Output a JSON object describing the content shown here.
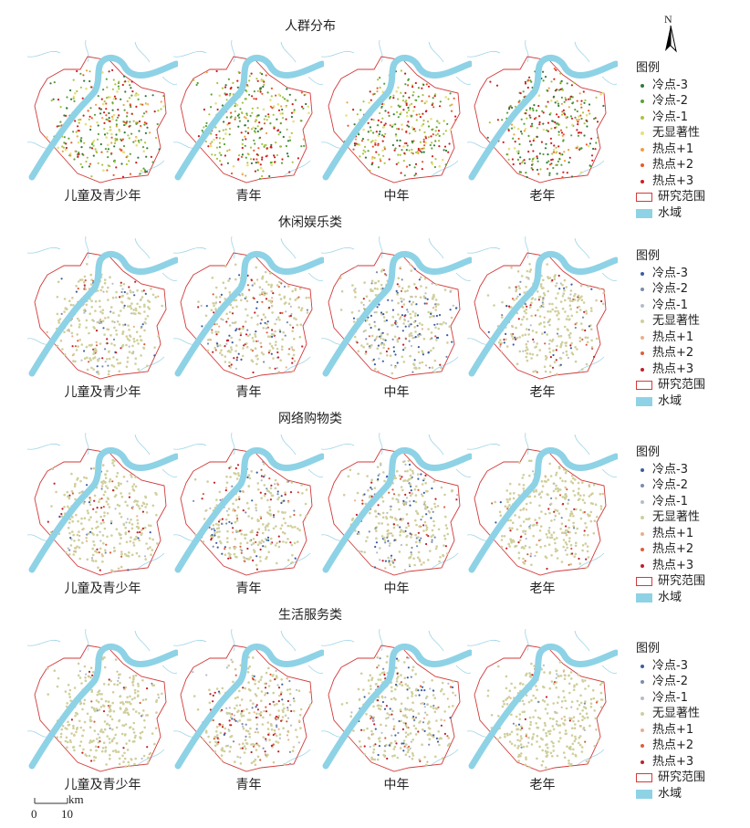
{
  "north_arrow": {
    "label": "N"
  },
  "scale": {
    "start": "0",
    "end": "10",
    "unit": "km"
  },
  "colors": {
    "river": "#8ed2e6",
    "river_edge": "#6fbfd8",
    "boundary": "#d23a3a",
    "population": {
      "cold3": "#2f7b3a",
      "cold2": "#5aa03b",
      "cold1": "#a9c440",
      "ns": "#e6e080",
      "hot1": "#f0a040",
      "hot2": "#e85a2a",
      "hot3": "#cc1f22"
    },
    "activity": {
      "cold3": "#3a5fa0",
      "cold2": "#7a8cb0",
      "cold1": "#b5bcc8",
      "ns": "#cfcf9c",
      "hot1": "#e8b08a",
      "hot2": "#d9603f",
      "hot3": "#c0202a"
    }
  },
  "rows": [
    {
      "title": "人群分布",
      "palette": "population",
      "panels": [
        {
          "label": "儿童及青少年",
          "weights": {
            "cold3": 0.12,
            "cold2": 0.18,
            "cold1": 0.28,
            "ns": 0.12,
            "hot1": 0.05,
            "hot2": 0.08,
            "hot3": 0.17
          }
        },
        {
          "label": "青年",
          "weights": {
            "cold3": 0.12,
            "cold2": 0.18,
            "cold1": 0.3,
            "ns": 0.1,
            "hot1": 0.05,
            "hot2": 0.08,
            "hot3": 0.17
          }
        },
        {
          "label": "中年",
          "weights": {
            "cold3": 0.1,
            "cold2": 0.18,
            "cold1": 0.26,
            "ns": 0.1,
            "hot1": 0.04,
            "hot2": 0.1,
            "hot3": 0.22
          }
        },
        {
          "label": "老年",
          "weights": {
            "cold3": 0.18,
            "cold2": 0.25,
            "cold1": 0.12,
            "ns": 0.08,
            "hot1": 0.03,
            "hot2": 0.08,
            "hot3": 0.26
          }
        }
      ]
    },
    {
      "title": "休闲娱乐类",
      "palette": "activity",
      "panels": [
        {
          "label": "儿童及青少年",
          "weights": {
            "cold3": 0.04,
            "cold2": 0.04,
            "cold1": 0.08,
            "ns": 0.7,
            "hot1": 0.03,
            "hot2": 0.04,
            "hot3": 0.07
          }
        },
        {
          "label": "青年",
          "weights": {
            "cold3": 0.09,
            "cold2": 0.05,
            "cold1": 0.06,
            "ns": 0.62,
            "hot1": 0.03,
            "hot2": 0.05,
            "hot3": 0.1
          }
        },
        {
          "label": "中年",
          "weights": {
            "cold3": 0.2,
            "cold2": 0.08,
            "cold1": 0.06,
            "ns": 0.56,
            "hot1": 0.02,
            "hot2": 0.03,
            "hot3": 0.05
          }
        },
        {
          "label": "老年",
          "weights": {
            "cold3": 0.06,
            "cold2": 0.05,
            "cold1": 0.06,
            "ns": 0.72,
            "hot1": 0.02,
            "hot2": 0.03,
            "hot3": 0.06
          }
        }
      ]
    },
    {
      "title": "网络购物类",
      "palette": "activity",
      "panels": [
        {
          "label": "儿童及青少年",
          "weights": {
            "cold3": 0.04,
            "cold2": 0.03,
            "cold1": 0.06,
            "ns": 0.74,
            "hot1": 0.02,
            "hot2": 0.04,
            "hot3": 0.07
          }
        },
        {
          "label": "青年",
          "weights": {
            "cold3": 0.1,
            "cold2": 0.05,
            "cold1": 0.05,
            "ns": 0.6,
            "hot1": 0.03,
            "hot2": 0.05,
            "hot3": 0.12
          }
        },
        {
          "label": "中年",
          "weights": {
            "cold3": 0.1,
            "cold2": 0.06,
            "cold1": 0.06,
            "ns": 0.66,
            "hot1": 0.02,
            "hot2": 0.04,
            "hot3": 0.06
          }
        },
        {
          "label": "老年",
          "weights": {
            "cold3": 0.01,
            "cold2": 0.02,
            "cold1": 0.05,
            "ns": 0.84,
            "hot1": 0.02,
            "hot2": 0.02,
            "hot3": 0.04
          }
        }
      ]
    },
    {
      "title": "生活服务类",
      "palette": "activity",
      "panels": [
        {
          "label": "儿童及青少年",
          "weights": {
            "cold3": 0.01,
            "cold2": 0.02,
            "cold1": 0.04,
            "ns": 0.85,
            "hot1": 0.02,
            "hot2": 0.02,
            "hot3": 0.04
          }
        },
        {
          "label": "青年",
          "weights": {
            "cold3": 0.04,
            "cold2": 0.04,
            "cold1": 0.06,
            "ns": 0.64,
            "hot1": 0.03,
            "hot2": 0.05,
            "hot3": 0.14
          }
        },
        {
          "label": "中年",
          "weights": {
            "cold3": 0.14,
            "cold2": 0.05,
            "cold1": 0.06,
            "ns": 0.63,
            "hot1": 0.02,
            "hot2": 0.04,
            "hot3": 0.06
          }
        },
        {
          "label": "老年",
          "weights": {
            "cold3": 0.01,
            "cold2": 0.01,
            "cold1": 0.03,
            "ns": 0.9,
            "hot1": 0.01,
            "hot2": 0.02,
            "hot3": 0.02
          }
        }
      ]
    }
  ],
  "legend": {
    "title": "图例",
    "classes": [
      {
        "key": "cold3",
        "label": "冷点-3"
      },
      {
        "key": "cold2",
        "label": "冷点-2"
      },
      {
        "key": "cold1",
        "label": "冷点-1"
      },
      {
        "key": "ns",
        "label": "无显著性"
      },
      {
        "key": "hot1",
        "label": "热点+1"
      },
      {
        "key": "hot2",
        "label": "热点+2"
      },
      {
        "key": "hot3",
        "label": "热点+3"
      }
    ],
    "boundary_label": "研究范围",
    "water_label": "水域"
  }
}
